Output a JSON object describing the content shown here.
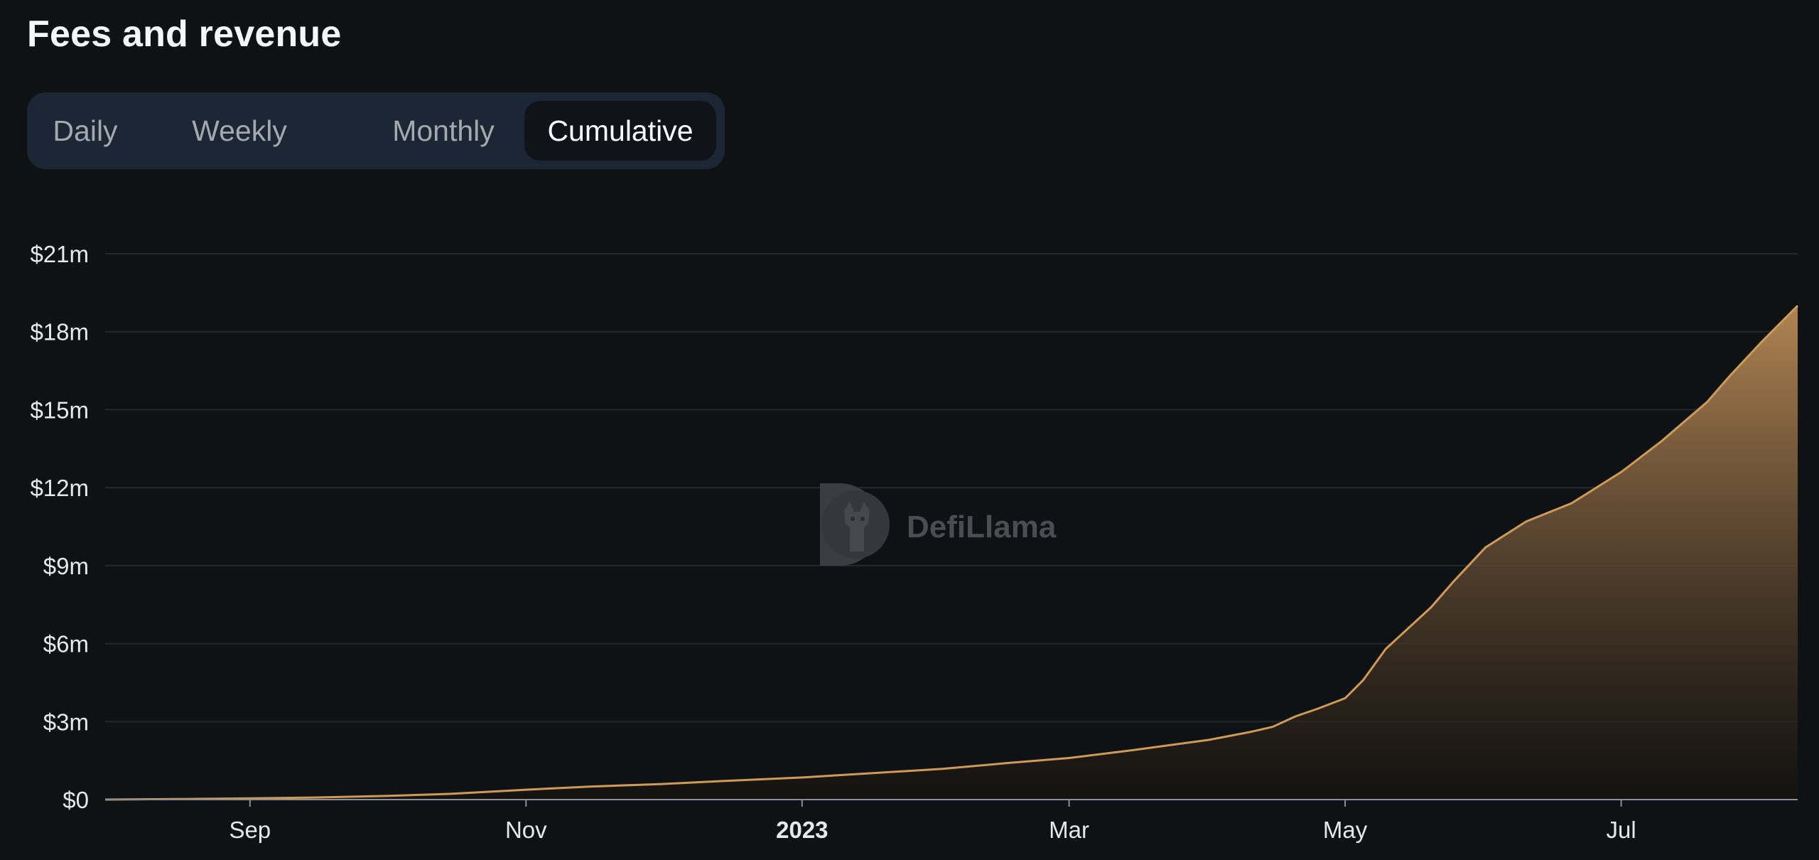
{
  "header": {
    "title": "Fees and revenue"
  },
  "tabs": [
    {
      "label": "Daily",
      "active": false
    },
    {
      "label": "Weekly",
      "active": false
    },
    {
      "label": "Monthly",
      "active": false
    },
    {
      "label": "Cumulative",
      "active": true
    }
  ],
  "watermark": {
    "text": "DefiLlama"
  },
  "colors": {
    "background": "#0f1214",
    "line": "#cf9a55",
    "fill_top": "#b08453",
    "grid": "#24282d",
    "tab_bar": "#1d2634",
    "tab_active": "#10141a"
  },
  "chart_data": {
    "type": "area",
    "title": "Fees and revenue",
    "xlabel": "",
    "ylabel": "",
    "y_axis": {
      "ticks": [
        0,
        3,
        6,
        9,
        12,
        15,
        18,
        21
      ],
      "tick_labels": [
        "$0",
        "$3m",
        "$6m",
        "$9m",
        "$12m",
        "$15m",
        "$18m",
        "$21m"
      ],
      "range": [
        0,
        21
      ]
    },
    "x_axis": {
      "range": [
        "2022-07-31",
        "2023-08-09"
      ],
      "ticks": [
        {
          "date": "2022-09-01",
          "label": "Sep",
          "bold": false
        },
        {
          "date": "2022-11-01",
          "label": "Nov",
          "bold": false
        },
        {
          "date": "2023-01-01",
          "label": "2023",
          "bold": true
        },
        {
          "date": "2023-03-01",
          "label": "Mar",
          "bold": false
        },
        {
          "date": "2023-05-01",
          "label": "May",
          "bold": false
        },
        {
          "date": "2023-07-01",
          "label": "Jul",
          "bold": false
        }
      ]
    },
    "grid": true,
    "legend": "none",
    "series": [
      {
        "values": [
          {
            "x": "2022-07-31",
            "y": 0.0
          },
          {
            "x": "2022-08-15",
            "y": 0.02
          },
          {
            "x": "2022-09-01",
            "y": 0.05
          },
          {
            "x": "2022-09-15",
            "y": 0.08
          },
          {
            "x": "2022-10-01",
            "y": 0.14
          },
          {
            "x": "2022-10-15",
            "y": 0.22
          },
          {
            "x": "2022-11-01",
            "y": 0.38
          },
          {
            "x": "2022-11-15",
            "y": 0.5
          },
          {
            "x": "2022-12-01",
            "y": 0.6
          },
          {
            "x": "2022-12-15",
            "y": 0.72
          },
          {
            "x": "2023-01-01",
            "y": 0.85
          },
          {
            "x": "2023-01-15",
            "y": 1.0
          },
          {
            "x": "2023-02-01",
            "y": 1.18
          },
          {
            "x": "2023-02-15",
            "y": 1.4
          },
          {
            "x": "2023-03-01",
            "y": 1.6
          },
          {
            "x": "2023-03-15",
            "y": 1.9
          },
          {
            "x": "2023-04-01",
            "y": 2.3
          },
          {
            "x": "2023-04-10",
            "y": 2.6
          },
          {
            "x": "2023-04-15",
            "y": 2.8
          },
          {
            "x": "2023-04-20",
            "y": 3.2
          },
          {
            "x": "2023-04-25",
            "y": 3.5
          },
          {
            "x": "2023-05-01",
            "y": 3.9
          },
          {
            "x": "2023-05-05",
            "y": 4.6
          },
          {
            "x": "2023-05-10",
            "y": 5.8
          },
          {
            "x": "2023-05-15",
            "y": 6.6
          },
          {
            "x": "2023-05-20",
            "y": 7.4
          },
          {
            "x": "2023-05-25",
            "y": 8.4
          },
          {
            "x": "2023-06-01",
            "y": 9.7
          },
          {
            "x": "2023-06-10",
            "y": 10.7
          },
          {
            "x": "2023-06-20",
            "y": 11.4
          },
          {
            "x": "2023-07-01",
            "y": 12.6
          },
          {
            "x": "2023-07-10",
            "y": 13.8
          },
          {
            "x": "2023-07-20",
            "y": 15.3
          },
          {
            "x": "2023-07-25",
            "y": 16.3
          },
          {
            "x": "2023-08-01",
            "y": 17.6
          },
          {
            "x": "2023-08-09",
            "y": 19.0
          }
        ]
      }
    ]
  }
}
